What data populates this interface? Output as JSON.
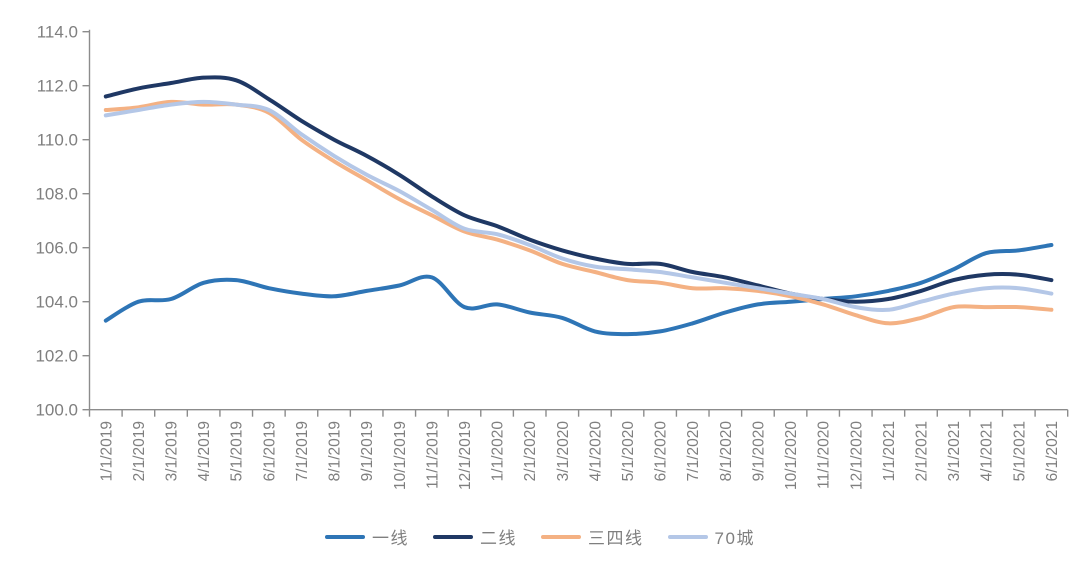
{
  "chart_data": {
    "type": "line",
    "x_labels": [
      "1/1/2019",
      "2/1/2019",
      "3/1/2019",
      "4/1/2019",
      "5/1/2019",
      "6/1/2019",
      "7/1/2019",
      "8/1/2019",
      "9/1/2019",
      "10/1/2019",
      "11/1/2019",
      "12/1/2019",
      "1/1/2020",
      "2/1/2020",
      "3/1/2020",
      "4/1/2020",
      "5/1/2020",
      "6/1/2020",
      "7/1/2020",
      "8/1/2020",
      "9/1/2020",
      "10/1/2020",
      "11/1/2020",
      "12/1/2020",
      "1/1/2021",
      "2/1/2021",
      "3/1/2021",
      "4/1/2021",
      "5/1/2021",
      "6/1/2021"
    ],
    "series": [
      {
        "name": "一线",
        "color": "#2E75B6",
        "values": [
          103.3,
          104.0,
          104.1,
          104.7,
          104.8,
          104.5,
          104.3,
          104.2,
          104.4,
          104.6,
          104.9,
          103.8,
          103.9,
          103.6,
          103.4,
          102.9,
          102.8,
          102.9,
          103.2,
          103.6,
          103.9,
          104.0,
          104.1,
          104.2,
          104.4,
          104.7,
          105.2,
          105.8,
          105.9,
          106.1
        ]
      },
      {
        "name": "二线",
        "color": "#1F3864",
        "values": [
          111.6,
          111.9,
          112.1,
          112.3,
          112.2,
          111.5,
          110.7,
          110.0,
          109.4,
          108.7,
          107.9,
          107.2,
          106.8,
          106.3,
          105.9,
          105.6,
          105.4,
          105.4,
          105.1,
          104.9,
          104.6,
          104.3,
          104.1,
          104.0,
          104.1,
          104.4,
          104.8,
          105.0,
          105.0,
          104.8
        ]
      },
      {
        "name": "三四线",
        "color": "#F4B183",
        "values": [
          111.1,
          111.2,
          111.4,
          111.3,
          111.3,
          111.0,
          110.0,
          109.2,
          108.5,
          107.8,
          107.2,
          106.6,
          106.3,
          105.9,
          105.4,
          105.1,
          104.8,
          104.7,
          104.5,
          104.5,
          104.4,
          104.2,
          103.9,
          103.5,
          103.2,
          103.4,
          103.8,
          103.8,
          103.8,
          103.7
        ]
      },
      {
        "name": "70城",
        "color": "#B4C7E7",
        "values": [
          110.9,
          111.1,
          111.3,
          111.4,
          111.3,
          111.1,
          110.2,
          109.4,
          108.7,
          108.1,
          107.4,
          106.7,
          106.5,
          106.1,
          105.6,
          105.3,
          105.2,
          105.1,
          104.9,
          104.7,
          104.5,
          104.3,
          104.1,
          103.8,
          103.7,
          104.0,
          104.3,
          104.5,
          104.5,
          104.3
        ]
      }
    ],
    "y_axis": {
      "min": 100.0,
      "max": 114.0,
      "step": 2.0,
      "tick_labels": [
        "100.0",
        "102.0",
        "104.0",
        "106.0",
        "108.0",
        "110.0",
        "112.0",
        "114.0"
      ]
    },
    "legend": {
      "position": "bottom",
      "items": [
        "一线",
        "二线",
        "三四线",
        "70城"
      ]
    },
    "grid": false,
    "smooth_lines": true,
    "colors": {
      "axis": "#8C8C8C",
      "label_text": "#7F7F7F",
      "background": "#FFFFFF"
    }
  }
}
